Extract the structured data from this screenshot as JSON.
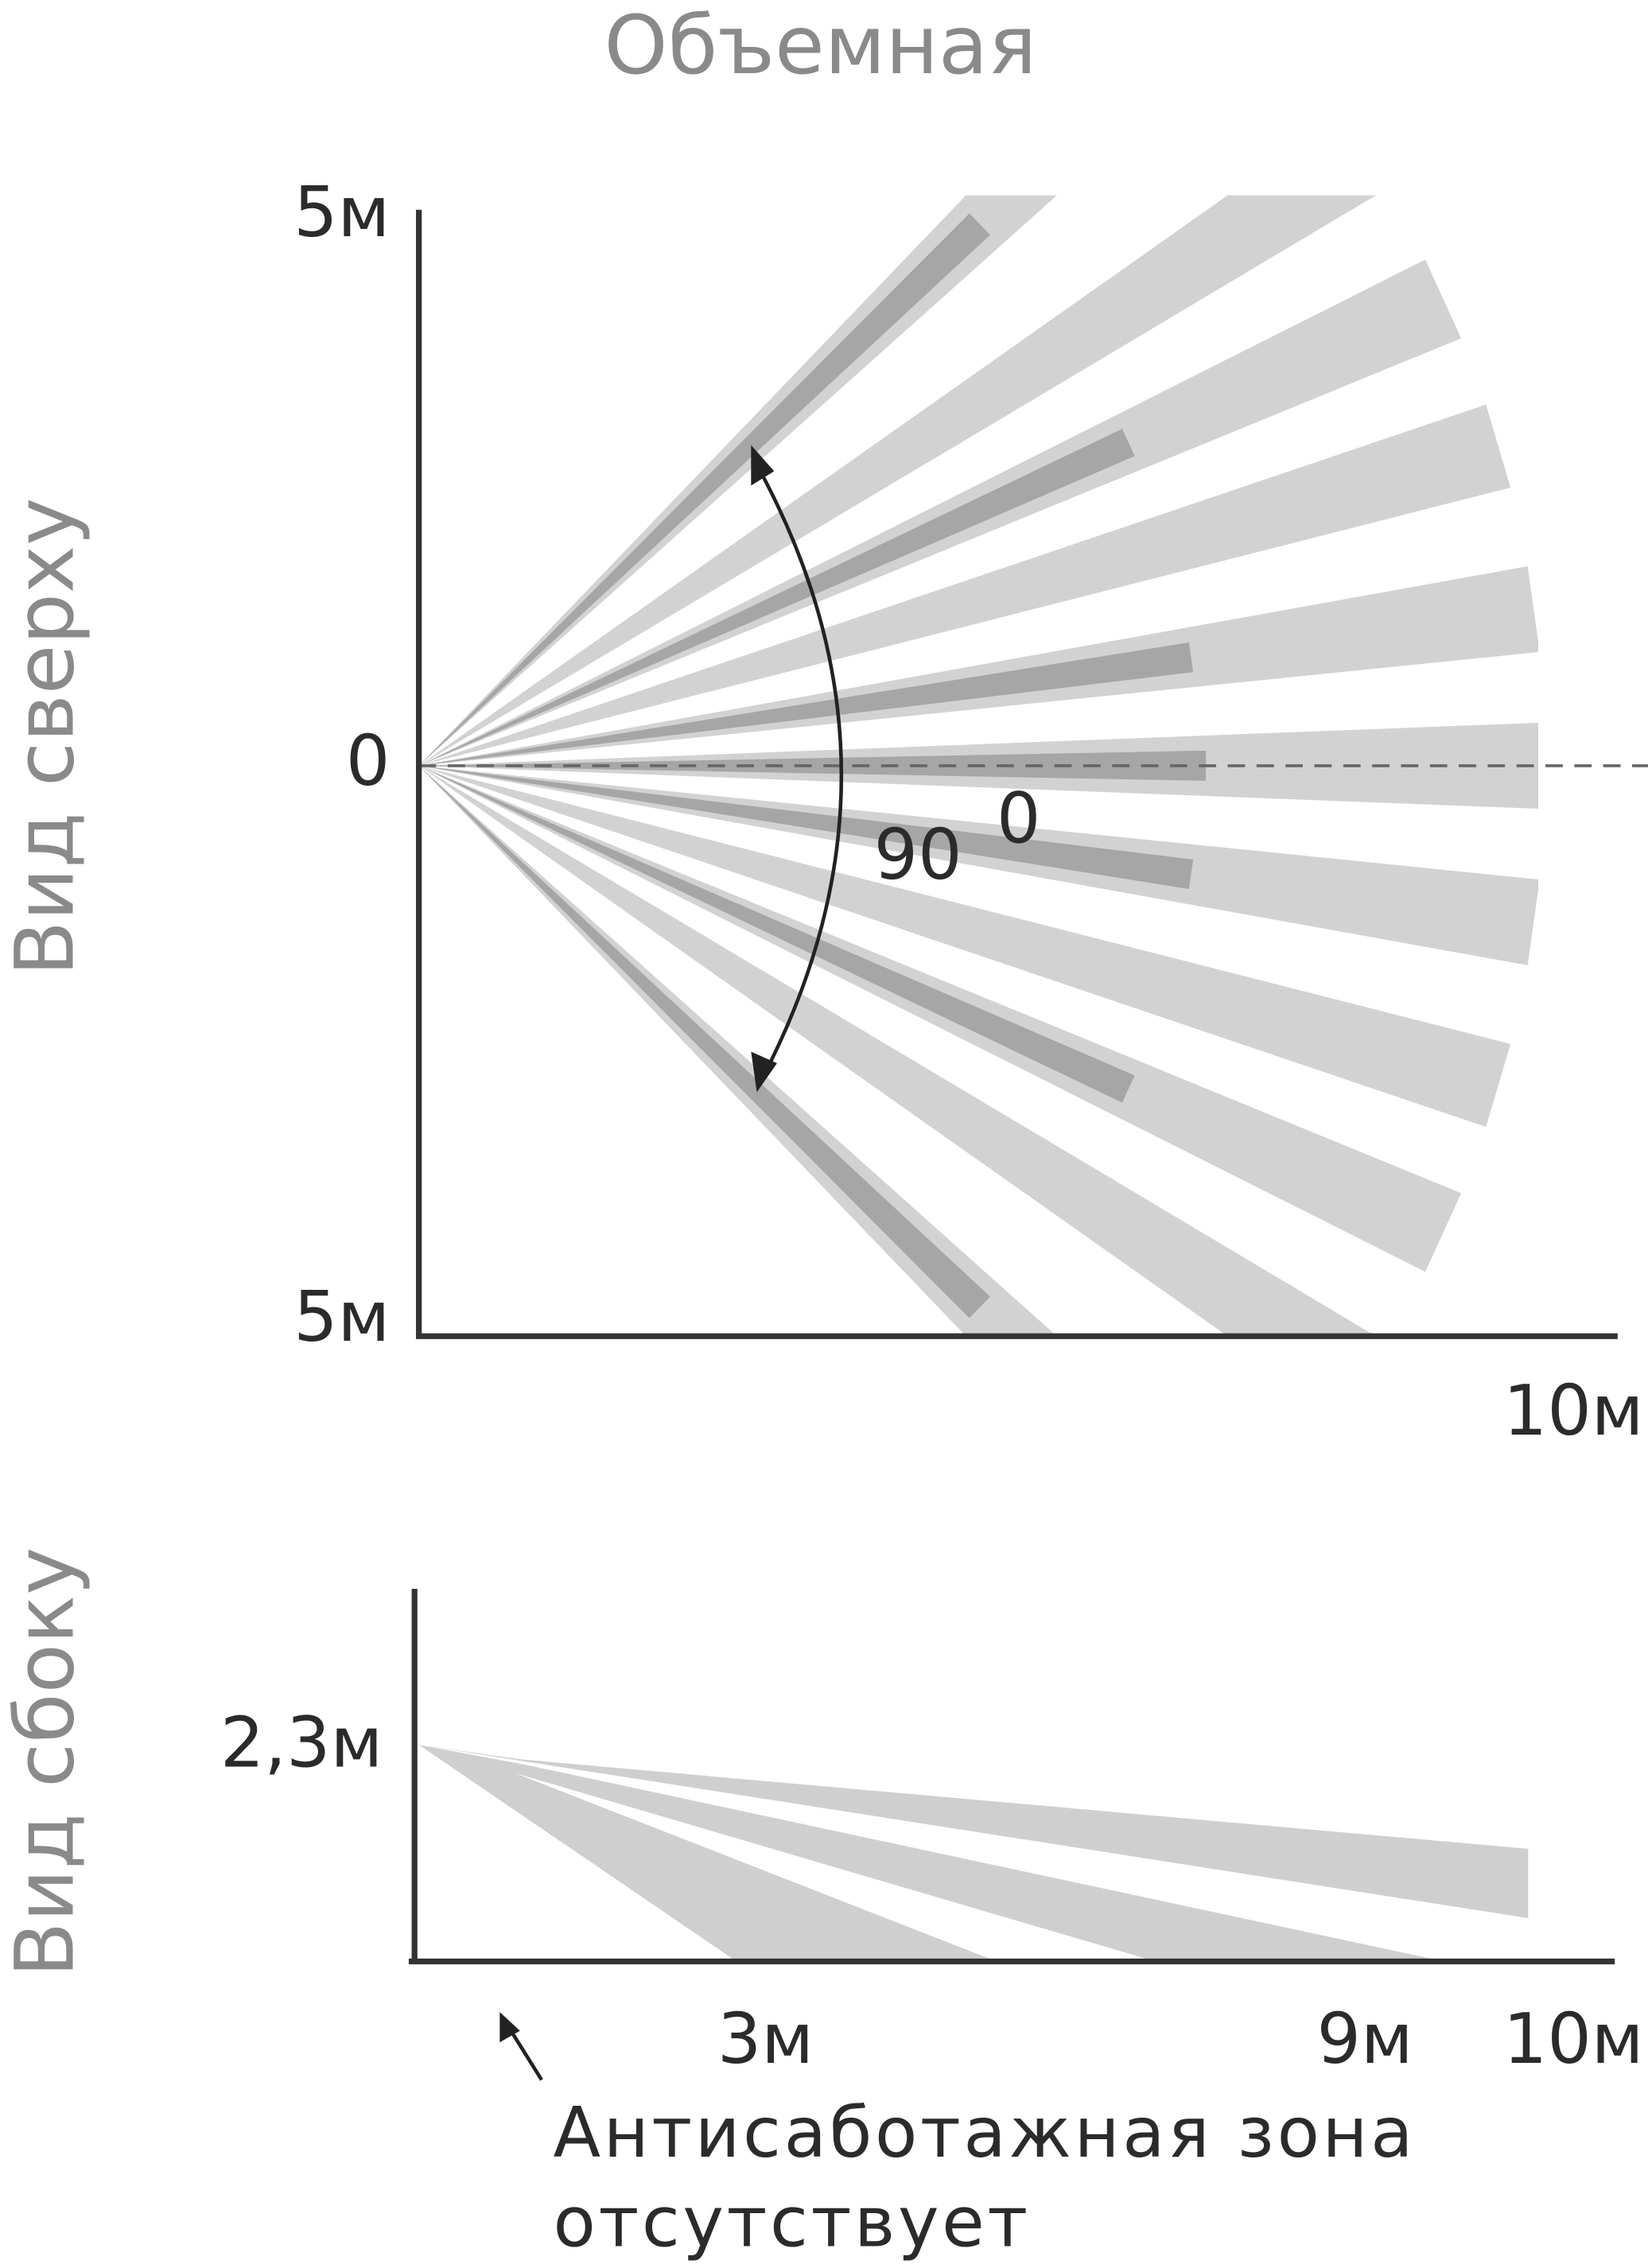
{
  "title": "Объемная",
  "top_view": {
    "label": "Вид сверху",
    "y_top": "5м",
    "y_zero": "0",
    "y_bottom": "5м",
    "x_end": "10м",
    "angle": "90",
    "angle_sup": "0"
  },
  "side_view": {
    "label": "Вид сбоку",
    "height": "2,3м",
    "x_labels": [
      "3м",
      "9м",
      "10м"
    ]
  },
  "note": {
    "lines": [
      "Антисаботажная зона",
      "отсутствует"
    ]
  }
}
